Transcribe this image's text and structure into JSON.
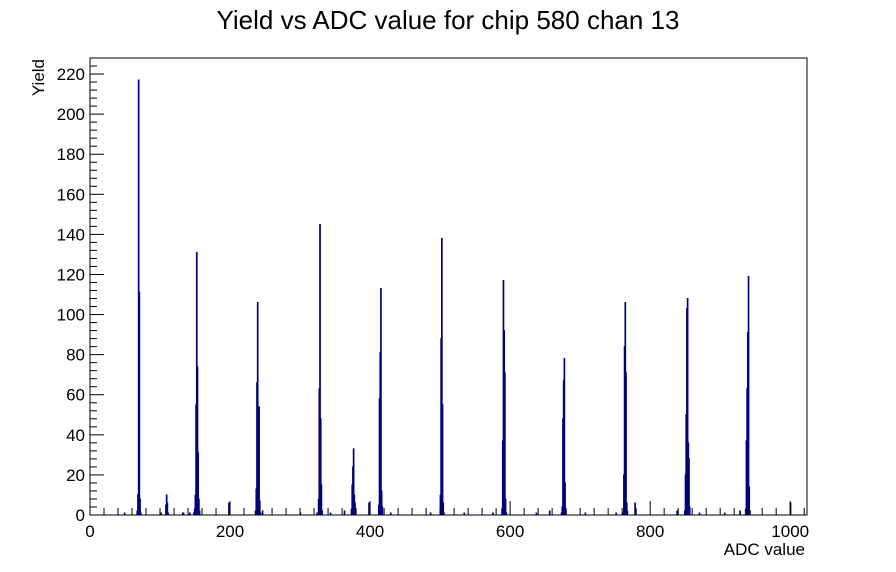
{
  "chart_data": {
    "type": "histogram",
    "title": "Yield vs ADC value for chip 580 chan 13",
    "xlabel": "ADC value",
    "ylabel": "Yield",
    "xlim": [
      0,
      1024
    ],
    "ylim": [
      0,
      228
    ],
    "x_ticks": [
      0,
      200,
      400,
      600,
      800,
      1000
    ],
    "y_ticks": [
      0,
      20,
      40,
      60,
      80,
      100,
      120,
      140,
      160,
      180,
      200,
      220
    ],
    "grid": false,
    "legend": "none",
    "colors": {
      "series": "#000080",
      "axes": "#000000",
      "background": "#ffffff"
    },
    "series": [
      {
        "values": [
          {
            "x": 49,
            "y": 1
          },
          {
            "x": 67,
            "y": 2
          },
          {
            "x": 68,
            "y": 10
          },
          {
            "x": 69,
            "y": 217
          },
          {
            "x": 70,
            "y": 111
          },
          {
            "x": 71,
            "y": 8
          },
          {
            "x": 72,
            "y": 1
          },
          {
            "x": 101,
            "y": 1
          },
          {
            "x": 108,
            "y": 5
          },
          {
            "x": 109,
            "y": 10
          },
          {
            "x": 110,
            "y": 6
          },
          {
            "x": 111,
            "y": 1
          },
          {
            "x": 132,
            "y": 1
          },
          {
            "x": 133,
            "y": 1
          },
          {
            "x": 142,
            "y": 1
          },
          {
            "x": 148,
            "y": 1
          },
          {
            "x": 149,
            "y": 3
          },
          {
            "x": 150,
            "y": 10
          },
          {
            "x": 151,
            "y": 55
          },
          {
            "x": 152,
            "y": 131
          },
          {
            "x": 153,
            "y": 74
          },
          {
            "x": 154,
            "y": 31
          },
          {
            "x": 155,
            "y": 8
          },
          {
            "x": 156,
            "y": 2
          },
          {
            "x": 198,
            "y": 6
          },
          {
            "x": 236,
            "y": 2
          },
          {
            "x": 237,
            "y": 13
          },
          {
            "x": 238,
            "y": 66
          },
          {
            "x": 239,
            "y": 106
          },
          {
            "x": 240,
            "y": 52
          },
          {
            "x": 241,
            "y": 54
          },
          {
            "x": 242,
            "y": 7
          },
          {
            "x": 243,
            "y": 1
          },
          {
            "x": 246,
            "y": 2
          },
          {
            "x": 300,
            "y": 1
          },
          {
            "x": 324,
            "y": 1
          },
          {
            "x": 326,
            "y": 8
          },
          {
            "x": 327,
            "y": 63
          },
          {
            "x": 328,
            "y": 145
          },
          {
            "x": 329,
            "y": 48
          },
          {
            "x": 330,
            "y": 15
          },
          {
            "x": 331,
            "y": 2
          },
          {
            "x": 343,
            "y": 1
          },
          {
            "x": 363,
            "y": 2
          },
          {
            "x": 373,
            "y": 3
          },
          {
            "x": 374,
            "y": 15
          },
          {
            "x": 375,
            "y": 24
          },
          {
            "x": 376,
            "y": 33
          },
          {
            "x": 377,
            "y": 10
          },
          {
            "x": 378,
            "y": 6
          },
          {
            "x": 379,
            "y": 2
          },
          {
            "x": 398,
            "y": 6
          },
          {
            "x": 412,
            "y": 5
          },
          {
            "x": 413,
            "y": 58
          },
          {
            "x": 414,
            "y": 81
          },
          {
            "x": 415,
            "y": 113
          },
          {
            "x": 416,
            "y": 12
          },
          {
            "x": 417,
            "y": 4
          },
          {
            "x": 429,
            "y": 1
          },
          {
            "x": 486,
            "y": 1
          },
          {
            "x": 500,
            "y": 10
          },
          {
            "x": 501,
            "y": 88
          },
          {
            "x": 502,
            "y": 138
          },
          {
            "x": 503,
            "y": 55
          },
          {
            "x": 504,
            "y": 6
          },
          {
            "x": 505,
            "y": 1
          },
          {
            "x": 534,
            "y": 1
          },
          {
            "x": 575,
            "y": 1
          },
          {
            "x": 588,
            "y": 3
          },
          {
            "x": 589,
            "y": 37
          },
          {
            "x": 590,
            "y": 117
          },
          {
            "x": 591,
            "y": 92
          },
          {
            "x": 592,
            "y": 71
          },
          {
            "x": 593,
            "y": 8
          },
          {
            "x": 594,
            "y": 1
          },
          {
            "x": 637,
            "y": 1
          },
          {
            "x": 656,
            "y": 2
          },
          {
            "x": 673,
            "y": 1
          },
          {
            "x": 674,
            "y": 4
          },
          {
            "x": 675,
            "y": 48
          },
          {
            "x": 676,
            "y": 67
          },
          {
            "x": 677,
            "y": 78
          },
          {
            "x": 678,
            "y": 16
          },
          {
            "x": 679,
            "y": 2
          },
          {
            "x": 707,
            "y": 1
          },
          {
            "x": 751,
            "y": 1
          },
          {
            "x": 761,
            "y": 1
          },
          {
            "x": 762,
            "y": 20
          },
          {
            "x": 763,
            "y": 84
          },
          {
            "x": 764,
            "y": 106
          },
          {
            "x": 765,
            "y": 71
          },
          {
            "x": 766,
            "y": 6
          },
          {
            "x": 767,
            "y": 2
          },
          {
            "x": 778,
            "y": 6
          },
          {
            "x": 838,
            "y": 2
          },
          {
            "x": 849,
            "y": 2
          },
          {
            "x": 850,
            "y": 20
          },
          {
            "x": 851,
            "y": 50
          },
          {
            "x": 852,
            "y": 103
          },
          {
            "x": 853,
            "y": 108
          },
          {
            "x": 854,
            "y": 36
          },
          {
            "x": 855,
            "y": 28
          },
          {
            "x": 856,
            "y": 4
          },
          {
            "x": 870,
            "y": 1
          },
          {
            "x": 906,
            "y": 1
          },
          {
            "x": 928,
            "y": 2
          },
          {
            "x": 936,
            "y": 3
          },
          {
            "x": 937,
            "y": 37
          },
          {
            "x": 938,
            "y": 63
          },
          {
            "x": 939,
            "y": 91
          },
          {
            "x": 940,
            "y": 119
          },
          {
            "x": 941,
            "y": 14
          },
          {
            "x": 942,
            "y": 2
          },
          {
            "x": 1000,
            "y": 6
          }
        ]
      }
    ]
  }
}
